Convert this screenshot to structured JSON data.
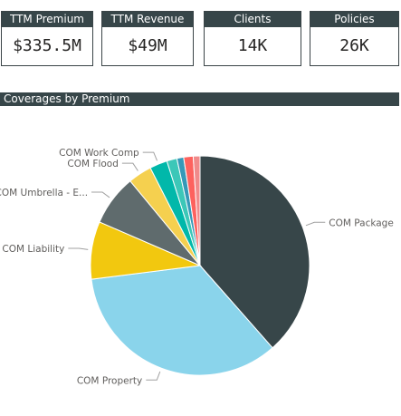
{
  "kpis": [
    {
      "label": "TTM Premium",
      "value": "$335.5M"
    },
    {
      "label": "TTM Revenue",
      "value": "$49M"
    },
    {
      "label": "Clients",
      "value": "14K"
    },
    {
      "label": "Policies",
      "value": "26K"
    }
  ],
  "chart_data": {
    "type": "pie",
    "title": "Coverages by Premium",
    "slices": [
      {
        "label": "COM Package",
        "value": 38.5,
        "color": "#374649"
      },
      {
        "label": "COM Property",
        "value": 34.5,
        "color": "#8ad4eb"
      },
      {
        "label": "COM Liability",
        "value": 8.5,
        "color": "#f2c80f"
      },
      {
        "label": "COM Umbrella - E...",
        "value": 7.5,
        "color": "#5f6b6d"
      },
      {
        "label": "COM Flood",
        "value": 3.5,
        "color": "#f5d04f"
      },
      {
        "label": "COM Work Comp",
        "value": 2.6,
        "color": "#01b8aa"
      },
      {
        "label": "",
        "value": 1.5,
        "color": "#3cc7b8"
      },
      {
        "label": "",
        "value": 1.0,
        "color": "#3599b8"
      },
      {
        "label": "",
        "value": 1.4,
        "color": "#fd625e"
      },
      {
        "label": "",
        "value": 1.0,
        "color": "#f08a8a"
      }
    ]
  }
}
